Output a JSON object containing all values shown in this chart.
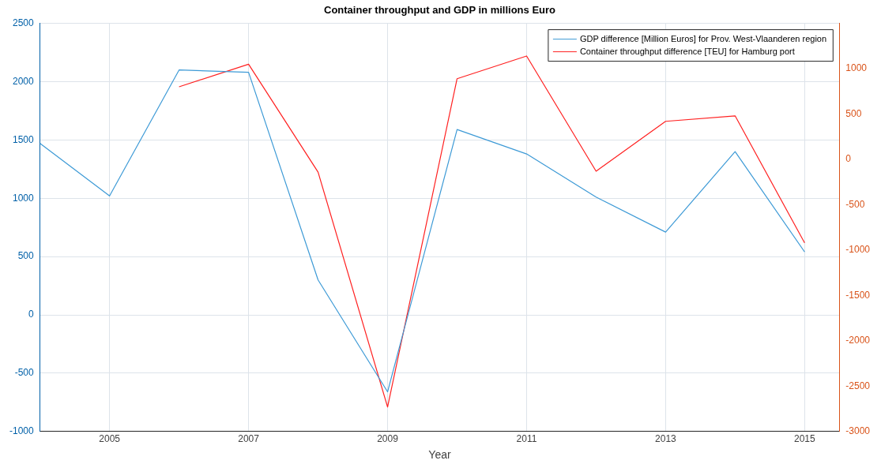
{
  "chart_data": {
    "type": "line",
    "title": "Container throughput and GDP in millions Euro",
    "xlabel": "Year",
    "x": [
      2004,
      2005,
      2006,
      2007,
      2008,
      2009,
      2010,
      2011,
      2012,
      2013,
      2014,
      2015
    ],
    "series": [
      {
        "name": "GDP difference [Million Euros] for Prov. West-Vlaanderen region",
        "color": "#3d9ad6",
        "values": [
          1470,
          1020,
          2100,
          2080,
          300,
          -660,
          1590,
          1380,
          1010,
          710,
          1400,
          540
        ]
      },
      {
        "name": "Container throughput difference [TEU] for Hamburg port",
        "color": "#ff2020",
        "axis": "y2",
        "values": [
          null,
          null,
          800,
          1050,
          -140,
          -2730,
          890,
          1140,
          -130,
          420,
          480,
          -920
        ]
      }
    ],
    "xlim": [
      2004,
      2015.5
    ],
    "xticks": [
      2005,
      2007,
      2009,
      2011,
      2013,
      2015
    ],
    "ylim": [
      -1000,
      2500
    ],
    "yticks": [
      -1000,
      -500,
      0,
      500,
      1000,
      1500,
      2000,
      2500
    ],
    "y2lim": [
      -3000,
      1500
    ],
    "y2ticks": [
      -3000,
      -2500,
      -2000,
      -1500,
      -1000,
      -500,
      0,
      500,
      1000
    ],
    "grid": true,
    "legend": "top right",
    "marker": "none",
    "line_style": "solid"
  }
}
